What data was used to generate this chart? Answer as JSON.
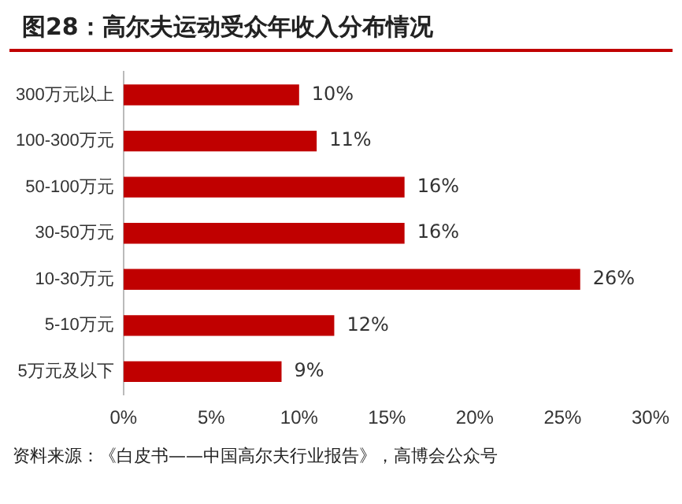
{
  "chart_data": {
    "type": "bar",
    "orientation": "horizontal",
    "title": "图28：高尔夫运动受众年收入分布情况",
    "categories": [
      "300万元以上",
      "100-300万元",
      "50-100万元",
      "30-50万元",
      "10-30万元",
      "5-10万元",
      "5万元及以下"
    ],
    "values": [
      10,
      11,
      16,
      16,
      26,
      12,
      9
    ],
    "color": "#c00000",
    "value_labels": [
      "10%",
      "11%",
      "16%",
      "16%",
      "26%",
      "12%",
      "9%"
    ],
    "xlim": [
      0,
      30
    ],
    "xticks": [
      {
        "value": 0,
        "label": "0%"
      },
      {
        "value": 5,
        "label": "5%"
      },
      {
        "value": 10,
        "label": "10%"
      },
      {
        "value": 15,
        "label": "15%"
      },
      {
        "value": 20,
        "label": "20%"
      },
      {
        "value": 25,
        "label": "25%"
      },
      {
        "value": 30,
        "label": "30%"
      }
    ],
    "grid": false,
    "legend": false,
    "annotations": [
      "资料来源：《白皮书——中国高尔夫行业报告》，高博会公众号"
    ]
  }
}
